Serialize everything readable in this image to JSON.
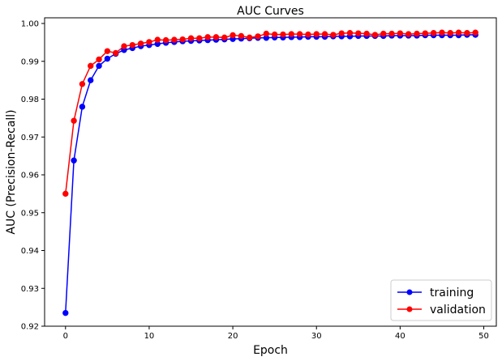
{
  "chart_data": {
    "type": "line",
    "title": "AUC  Curves",
    "xlabel": "Epoch",
    "ylabel": "AUC (Precision-Recall)",
    "xlim": [
      -2.5,
      51.5
    ],
    "ylim": [
      0.92,
      1.0015
    ],
    "x_ticks": [
      0,
      10,
      20,
      30,
      40,
      50
    ],
    "y_ticks": [
      0.92,
      0.93,
      0.94,
      0.95,
      0.96,
      0.97,
      0.98,
      0.99,
      1.0
    ],
    "y_tick_labels": [
      "0.92",
      "0.93",
      "0.94",
      "0.95",
      "0.96",
      "0.97",
      "0.98",
      "0.99",
      "1.00"
    ],
    "grid": false,
    "legend_position": "lower-right",
    "x": [
      0,
      1,
      2,
      3,
      4,
      5,
      6,
      7,
      8,
      9,
      10,
      11,
      12,
      13,
      14,
      15,
      16,
      17,
      18,
      19,
      20,
      21,
      22,
      23,
      24,
      25,
      26,
      27,
      28,
      29,
      30,
      31,
      32,
      33,
      34,
      35,
      36,
      37,
      38,
      39,
      40,
      41,
      42,
      43,
      44,
      45,
      46,
      47,
      48,
      49
    ],
    "series": [
      {
        "name": "training",
        "color": "#0000ff",
        "marker": "circle",
        "values": [
          0.9235,
          0.9638,
          0.978,
          0.985,
          0.9888,
          0.9907,
          0.992,
          0.993,
          0.9935,
          0.994,
          0.9943,
          0.9946,
          0.9949,
          0.9951,
          0.9953,
          0.9954,
          0.9955,
          0.9956,
          0.9957,
          0.9958,
          0.9959,
          0.996,
          0.9961,
          0.9962,
          0.9962,
          0.9963,
          0.9963,
          0.9964,
          0.9964,
          0.9965,
          0.9965,
          0.9965,
          0.9966,
          0.9966,
          0.9966,
          0.9967,
          0.9967,
          0.9967,
          0.9967,
          0.9968,
          0.9968,
          0.9968,
          0.9968,
          0.9969,
          0.9969,
          0.9969,
          0.9969,
          0.9969,
          0.997,
          0.997
        ]
      },
      {
        "name": "validation",
        "color": "#ff0000",
        "marker": "circle",
        "values": [
          0.955,
          0.9743,
          0.984,
          0.9888,
          0.9905,
          0.9927,
          0.9922,
          0.994,
          0.9943,
          0.9947,
          0.9951,
          0.9957,
          0.9956,
          0.9957,
          0.9958,
          0.9961,
          0.9961,
          0.9964,
          0.9964,
          0.9963,
          0.9969,
          0.9967,
          0.9963,
          0.9966,
          0.9973,
          0.9971,
          0.9971,
          0.9972,
          0.9972,
          0.9971,
          0.9972,
          0.9972,
          0.997,
          0.9974,
          0.9975,
          0.9974,
          0.9973,
          0.997,
          0.9973,
          0.9973,
          0.9974,
          0.9972,
          0.9973,
          0.9974,
          0.9975,
          0.9976,
          0.9975,
          0.9976,
          0.9975,
          0.9976
        ]
      }
    ]
  }
}
